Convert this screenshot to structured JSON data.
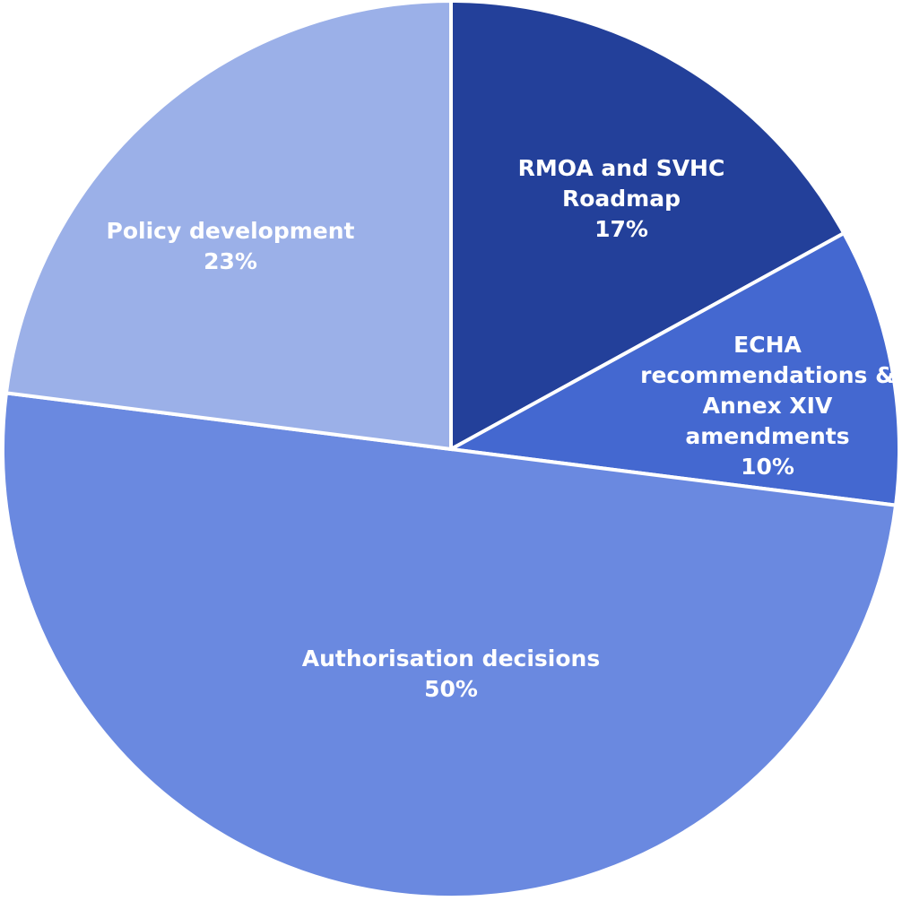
{
  "chart_data": {
    "type": "pie",
    "categories": [
      "RMOA and SVHC Roadmap",
      "ECHA recommendations & Annex XIV amendments",
      "Authorisation decisions",
      "Policy development"
    ],
    "values": [
      17,
      10,
      50,
      23
    ],
    "value_labels": [
      "17%",
      "10%",
      "50%",
      "23%"
    ],
    "colors": [
      "#23409a",
      "#4468d0",
      "#6a89e0",
      "#9bb0e8"
    ]
  }
}
